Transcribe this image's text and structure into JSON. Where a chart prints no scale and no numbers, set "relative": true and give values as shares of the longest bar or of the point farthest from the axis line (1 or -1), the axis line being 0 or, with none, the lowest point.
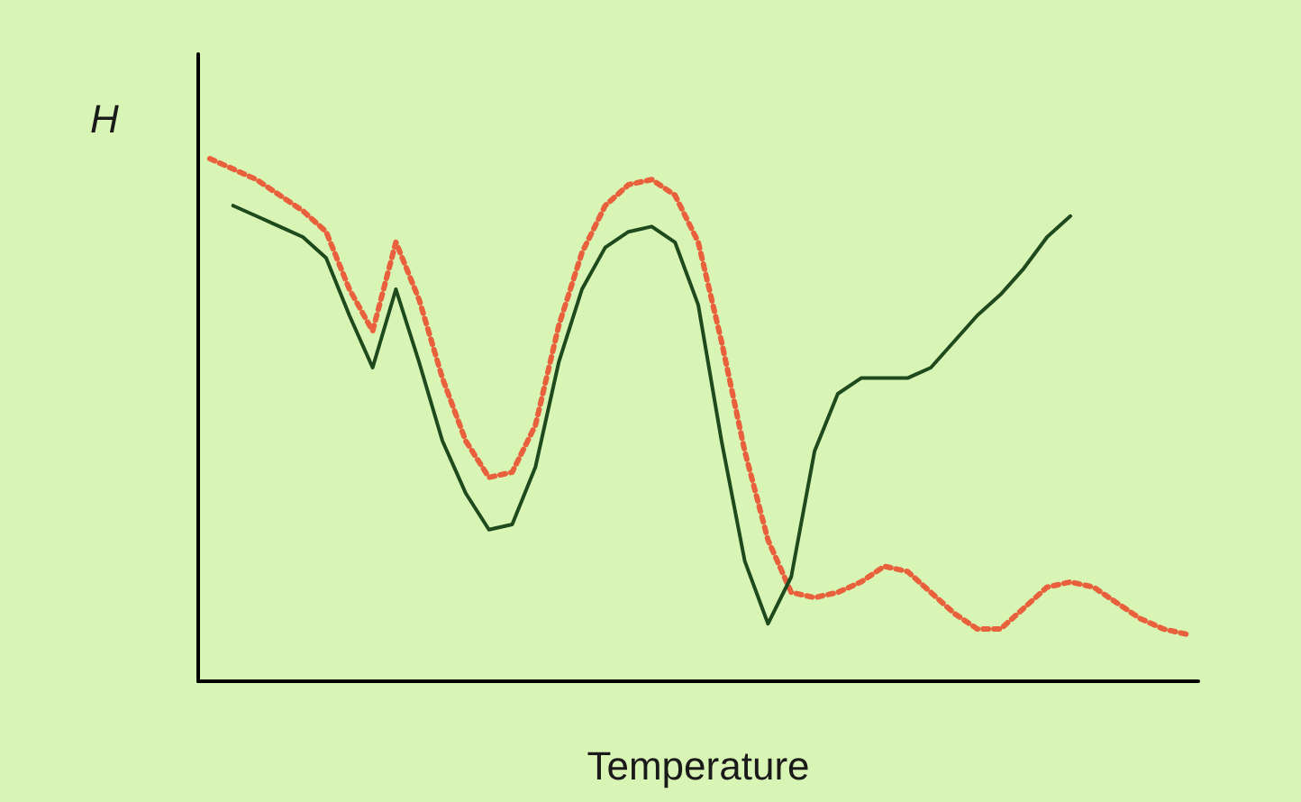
{
  "chart_data": {
    "type": "line",
    "relative": true,
    "xlabel": "Temperature",
    "ylabel": "H",
    "grid": false,
    "marker": "none",
    "categories": [
      null,
      null,
      null,
      null,
      null,
      null,
      null,
      null,
      null,
      null,
      null,
      null,
      null,
      null,
      null,
      null,
      null,
      null,
      null,
      null,
      null,
      null,
      null,
      null,
      null,
      null,
      null,
      null,
      null,
      null,
      null,
      null,
      null,
      null,
      null,
      null,
      null,
      null,
      null,
      null,
      null,
      null,
      null
    ],
    "series": [
      {
        "color": "#e8603c",
        "line_style": "dotted",
        "values": [
          1.0,
          0.98,
          0.96,
          0.93,
          0.9,
          0.86,
          0.75,
          0.67,
          0.84,
          0.73,
          0.58,
          0.46,
          0.39,
          0.4,
          0.49,
          0.68,
          0.82,
          0.91,
          0.95,
          0.96,
          0.93,
          0.84,
          0.65,
          0.44,
          0.27,
          0.17,
          0.16,
          0.17,
          0.19,
          0.22,
          0.21,
          0.17,
          0.13,
          0.1,
          0.1,
          0.14,
          0.18,
          0.19,
          0.18,
          0.15,
          0.12,
          0.1,
          0.09
        ]
      },
      {
        "color": "#1e4a1e",
        "line_style": "solid",
        "values": [
          null,
          0.91,
          0.89,
          0.87,
          0.85,
          0.81,
          0.7,
          0.6,
          0.75,
          0.61,
          0.46,
          0.36,
          0.29,
          0.3,
          0.41,
          0.61,
          0.75,
          0.83,
          0.86,
          0.87,
          0.84,
          0.72,
          0.46,
          0.23,
          0.11,
          0.2,
          0.44,
          0.55,
          0.58,
          0.58,
          0.58,
          0.6,
          0.65,
          0.7,
          0.74,
          0.79,
          0.85,
          0.89,
          null,
          null,
          null,
          null,
          null
        ]
      }
    ]
  }
}
